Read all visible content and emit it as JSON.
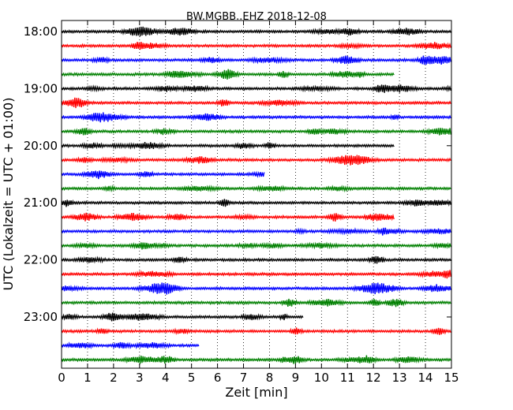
{
  "chart_data": {
    "type": "line",
    "title": "BW.MGBB..EHZ 2018-12-08",
    "xlabel": "Zeit  [min]",
    "ylabel": "UTC (Lokalzeit = UTC + 01:00)",
    "xlim": [
      0,
      15
    ],
    "x_ticks": [
      "0",
      "1",
      "2",
      "3",
      "4",
      "5",
      "6",
      "7",
      "8",
      "9",
      "10",
      "11",
      "12",
      "13",
      "14",
      "15"
    ],
    "y_tick_labels": [
      "18:00",
      "19:00",
      "20:00",
      "21:00",
      "22:00",
      "23:00"
    ],
    "y_tick_rows": [
      0,
      4,
      8,
      12,
      16,
      20
    ],
    "grid": "vertical dotted at each minute",
    "trace_colors": [
      "#000000",
      "#ff0000",
      "#0000ff",
      "#008000"
    ],
    "series": [
      {
        "start": "18:00",
        "end_minute": 15
      },
      {
        "start": "18:15",
        "end_minute": 15
      },
      {
        "start": "18:30",
        "end_minute": 15
      },
      {
        "start": "18:45",
        "end_minute": 12.8
      },
      {
        "start": "19:00",
        "end_minute": 15
      },
      {
        "start": "19:15",
        "end_minute": 15
      },
      {
        "start": "19:30",
        "end_minute": 15
      },
      {
        "start": "19:45",
        "end_minute": 15
      },
      {
        "start": "20:00",
        "end_minute": 12.8
      },
      {
        "start": "20:15",
        "end_minute": 15
      },
      {
        "start": "20:30",
        "end_minute": 7.8
      },
      {
        "start": "20:45",
        "end_minute": 15
      },
      {
        "start": "21:00",
        "end_minute": 15
      },
      {
        "start": "21:15",
        "end_minute": 12.8
      },
      {
        "start": "21:30",
        "end_minute": 15
      },
      {
        "start": "21:45",
        "end_minute": 15
      },
      {
        "start": "22:00",
        "end_minute": 15
      },
      {
        "start": "22:15",
        "end_minute": 15
      },
      {
        "start": "22:30",
        "end_minute": 15
      },
      {
        "start": "22:45",
        "end_minute": 15
      },
      {
        "start": "23:00",
        "end_minute": 9.3
      },
      {
        "start": "23:15",
        "end_minute": 15
      },
      {
        "start": "23:30",
        "end_minute": 5.3
      },
      {
        "start": "23:45",
        "end_minute": 15
      }
    ]
  }
}
